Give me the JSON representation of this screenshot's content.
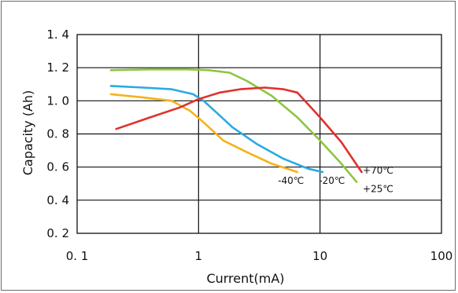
{
  "chart_data": {
    "type": "line",
    "xscale": "log",
    "xlim": [
      0.1,
      100
    ],
    "ylim": [
      0.2,
      1.4
    ],
    "grid": true,
    "xlabel": "Current(mA)",
    "ylabel": "Capacity (Ah)",
    "xticks": [
      {
        "value": 0.1,
        "label": "0. 1"
      },
      {
        "value": 1,
        "label": "1"
      },
      {
        "value": 10,
        "label": "10"
      },
      {
        "value": 100,
        "label": "100"
      }
    ],
    "yticks": [
      {
        "value": 0.2,
        "label": "0. 2"
      },
      {
        "value": 0.4,
        "label": "0. 4"
      },
      {
        "value": 0.6,
        "label": "0. 6"
      },
      {
        "value": 0.8,
        "label": "0. 8"
      },
      {
        "value": 1.0,
        "label": "1. 0"
      },
      {
        "value": 1.2,
        "label": "1. 2"
      },
      {
        "value": 1.4,
        "label": "1. 4"
      }
    ],
    "series": [
      {
        "name": "-40℃",
        "color": "#f5b21b",
        "x": [
          0.19,
          0.35,
          0.6,
          0.85,
          1.1,
          1.6,
          2.5,
          4.0,
          6.5
        ],
        "y": [
          1.04,
          1.02,
          1.0,
          0.94,
          0.87,
          0.76,
          0.69,
          0.62,
          0.57
        ]
      },
      {
        "name": "-20℃",
        "color": "#29aae2",
        "x": [
          0.19,
          0.35,
          0.6,
          0.9,
          1.1,
          1.4,
          1.9,
          3.0,
          5.0,
          8.0,
          10.5
        ],
        "y": [
          1.09,
          1.08,
          1.07,
          1.04,
          1.0,
          0.93,
          0.84,
          0.74,
          0.65,
          0.59,
          0.57
        ]
      },
      {
        "name": "+25℃",
        "color": "#8cc63f",
        "x": [
          0.19,
          0.4,
          0.8,
          1.2,
          1.8,
          2.5,
          4.0,
          6.5,
          10.0,
          15.0,
          20.0
        ],
        "y": [
          1.185,
          1.19,
          1.19,
          1.185,
          1.17,
          1.12,
          1.03,
          0.9,
          0.76,
          0.62,
          0.51
        ]
      },
      {
        "name": "+70℃",
        "color": "#e0312e",
        "x": [
          0.21,
          0.4,
          0.7,
          1.0,
          1.5,
          2.2,
          3.5,
          5.0,
          6.5,
          10.0,
          15.0,
          22.0
        ],
        "y": [
          0.83,
          0.9,
          0.96,
          1.01,
          1.05,
          1.07,
          1.08,
          1.07,
          1.05,
          0.9,
          0.75,
          0.57
        ]
      }
    ],
    "series_labels": [
      {
        "text": "-40℃",
        "x": 4.5,
        "y": 0.5
      },
      {
        "text": "-20℃",
        "x": 9.8,
        "y": 0.5
      },
      {
        "text": "+70℃",
        "x": 22.5,
        "y": 0.56
      },
      {
        "text": "+25℃",
        "x": 22.5,
        "y": 0.45
      }
    ]
  }
}
